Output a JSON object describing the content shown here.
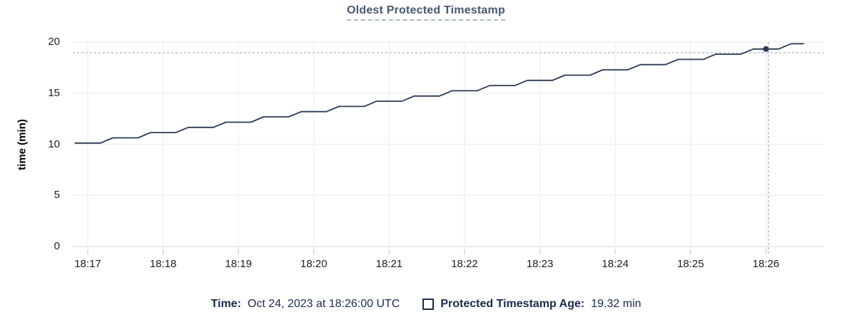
{
  "title": "Oldest Protected Timestamp",
  "colors": {
    "title": "#475872",
    "series_line": "#2b3a57",
    "legend_text": "#1b2b4e",
    "crosshair": "#9fb2c1",
    "gridline": "#efefef",
    "axis_tick": "#cccccc",
    "tick_label": "#1e1e1e"
  },
  "legend": {
    "time_label": "Time:",
    "time_value": "Oct 24, 2023 at 18:26:00 UTC",
    "series_label": "Protected Timestamp Age:",
    "series_value": "19.32 min"
  },
  "chart_data": {
    "type": "line",
    "title": "Oldest Protected Timestamp",
    "xlabel": "",
    "ylabel": "time (min)",
    "ylim": [
      0,
      20
    ],
    "y_ticks": [
      0,
      5,
      10,
      15,
      20
    ],
    "x_ticks": [
      "18:17",
      "18:18",
      "18:19",
      "18:20",
      "18:21",
      "18:22",
      "18:23",
      "18:24",
      "18:25",
      "18:26"
    ],
    "x_domain": [
      "18:16:48",
      "18:26:46"
    ],
    "grid": true,
    "legend_position": "bottom",
    "series": [
      {
        "name": "Protected Timestamp Age",
        "unit": "min",
        "color": "#2b3a57",
        "points": [
          [
            "18:16:50",
            10.12
          ],
          [
            "18:17:00",
            10.12
          ],
          [
            "18:17:10",
            10.12
          ],
          [
            "18:17:20",
            10.63
          ],
          [
            "18:17:30",
            10.63
          ],
          [
            "18:17:40",
            10.63
          ],
          [
            "18:17:50",
            11.14
          ],
          [
            "18:18:00",
            11.14
          ],
          [
            "18:18:10",
            11.14
          ],
          [
            "18:18:20",
            11.65
          ],
          [
            "18:18:30",
            11.65
          ],
          [
            "18:18:40",
            11.65
          ],
          [
            "18:18:50",
            12.16
          ],
          [
            "18:19:00",
            12.16
          ],
          [
            "18:19:10",
            12.16
          ],
          [
            "18:19:20",
            12.68
          ],
          [
            "18:19:30",
            12.68
          ],
          [
            "18:19:40",
            12.68
          ],
          [
            "18:19:50",
            13.19
          ],
          [
            "18:20:00",
            13.19
          ],
          [
            "18:20:10",
            13.19
          ],
          [
            "18:20:20",
            13.7
          ],
          [
            "18:20:30",
            13.7
          ],
          [
            "18:20:40",
            13.7
          ],
          [
            "18:20:50",
            14.21
          ],
          [
            "18:21:00",
            14.21
          ],
          [
            "18:21:10",
            14.21
          ],
          [
            "18:21:20",
            14.72
          ],
          [
            "18:21:30",
            14.72
          ],
          [
            "18:21:40",
            14.72
          ],
          [
            "18:21:50",
            15.23
          ],
          [
            "18:22:00",
            15.23
          ],
          [
            "18:22:10",
            15.23
          ],
          [
            "18:22:20",
            15.74
          ],
          [
            "18:22:30",
            15.74
          ],
          [
            "18:22:40",
            15.74
          ],
          [
            "18:22:50",
            16.25
          ],
          [
            "18:23:00",
            16.25
          ],
          [
            "18:23:10",
            16.25
          ],
          [
            "18:23:20",
            16.76
          ],
          [
            "18:23:30",
            16.76
          ],
          [
            "18:23:40",
            16.76
          ],
          [
            "18:23:50",
            17.28
          ],
          [
            "18:24:00",
            17.28
          ],
          [
            "18:24:10",
            17.28
          ],
          [
            "18:24:20",
            17.79
          ],
          [
            "18:24:30",
            17.79
          ],
          [
            "18:24:40",
            17.79
          ],
          [
            "18:24:50",
            18.3
          ],
          [
            "18:25:00",
            18.3
          ],
          [
            "18:25:10",
            18.3
          ],
          [
            "18:25:20",
            18.81
          ],
          [
            "18:25:30",
            18.81
          ],
          [
            "18:25:40",
            18.81
          ],
          [
            "18:25:50",
            19.32
          ],
          [
            "18:26:00",
            19.32
          ],
          [
            "18:26:10",
            19.32
          ],
          [
            "18:26:20",
            19.83
          ],
          [
            "18:26:30",
            19.83
          ]
        ]
      }
    ],
    "hover": {
      "crosshair_time": "18:26:02",
      "crosshair_value": 18.95,
      "point_time": "18:26:00",
      "point_value": 19.32
    }
  }
}
